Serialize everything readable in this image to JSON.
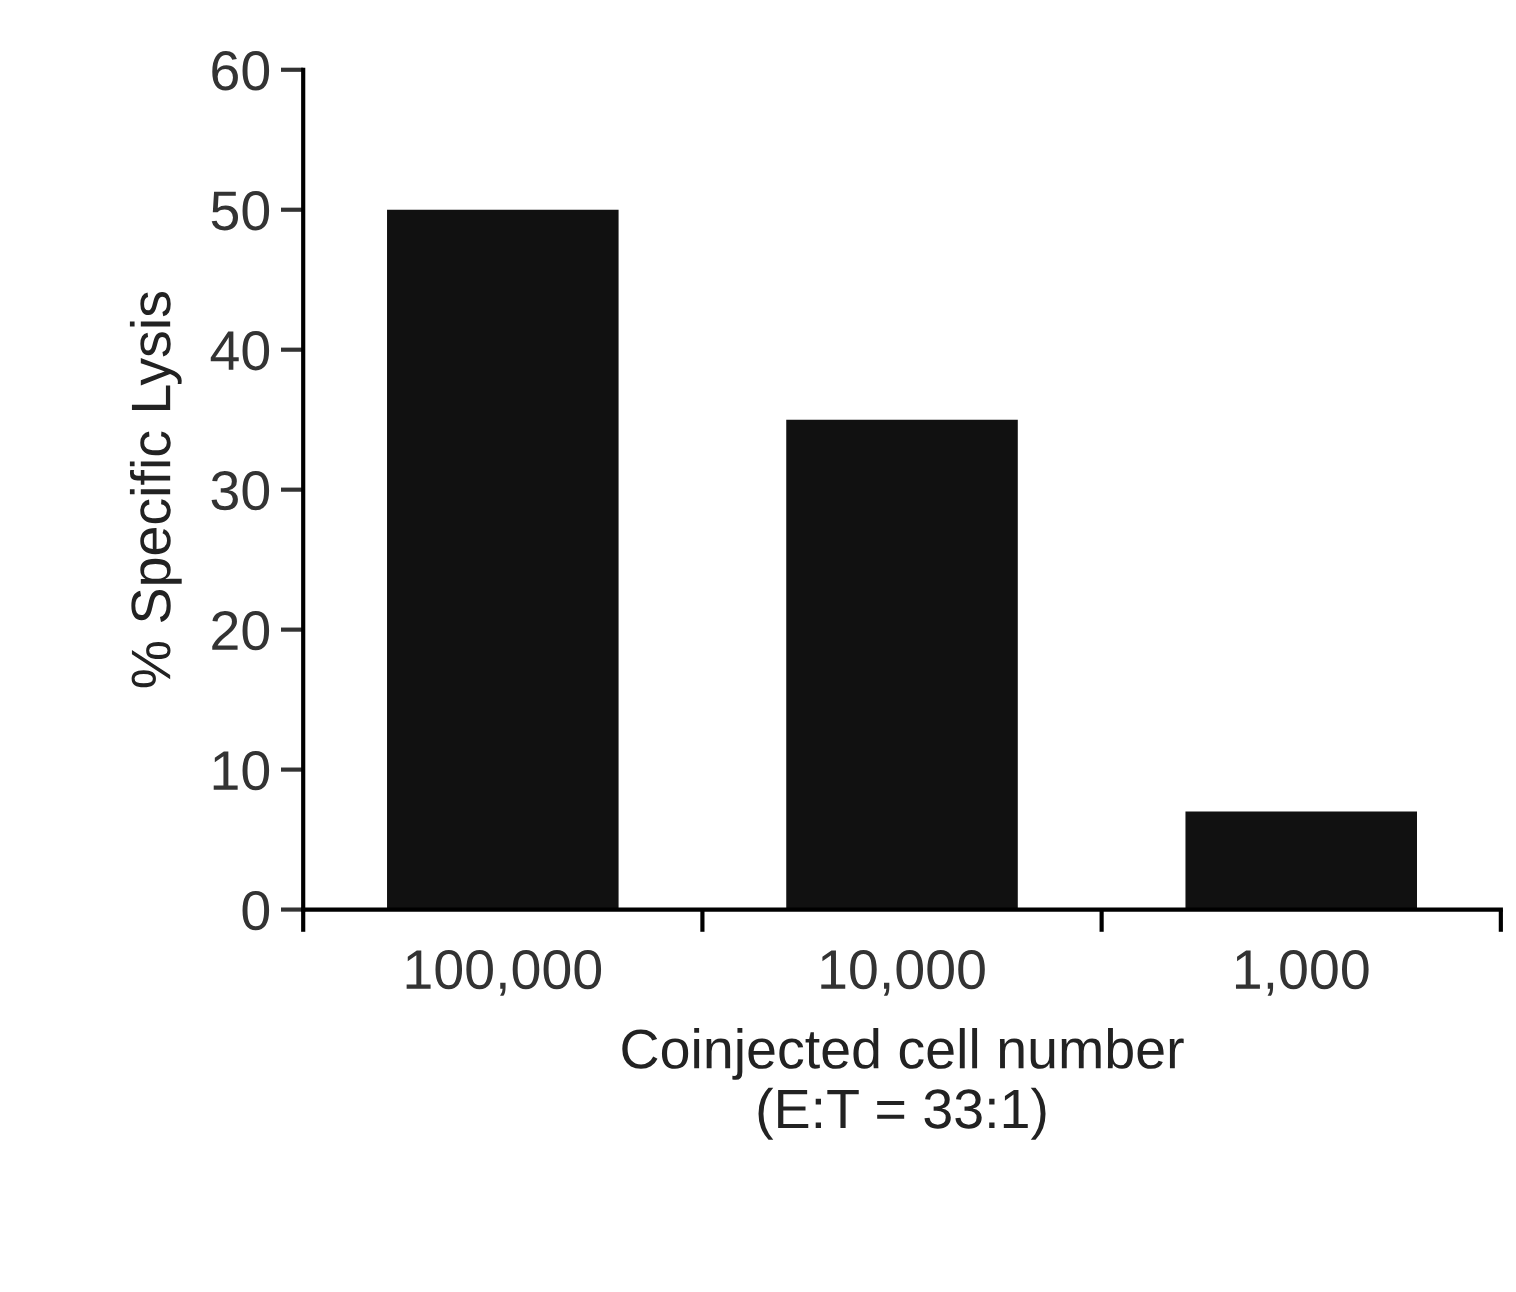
{
  "chart_data": {
    "type": "bar",
    "xlabel": "Coinjected cell number\n(E:T = 33:1)",
    "ylabel": "% Specific Lysis",
    "categories": [
      "100,000",
      "10,000",
      "1,000"
    ],
    "values": [
      50,
      35,
      7
    ],
    "color": "#111111",
    "ylim": [
      0,
      60
    ],
    "yticks": [
      0,
      10,
      20,
      30,
      40,
      50,
      60
    ],
    "grid": false,
    "legend": false
  }
}
